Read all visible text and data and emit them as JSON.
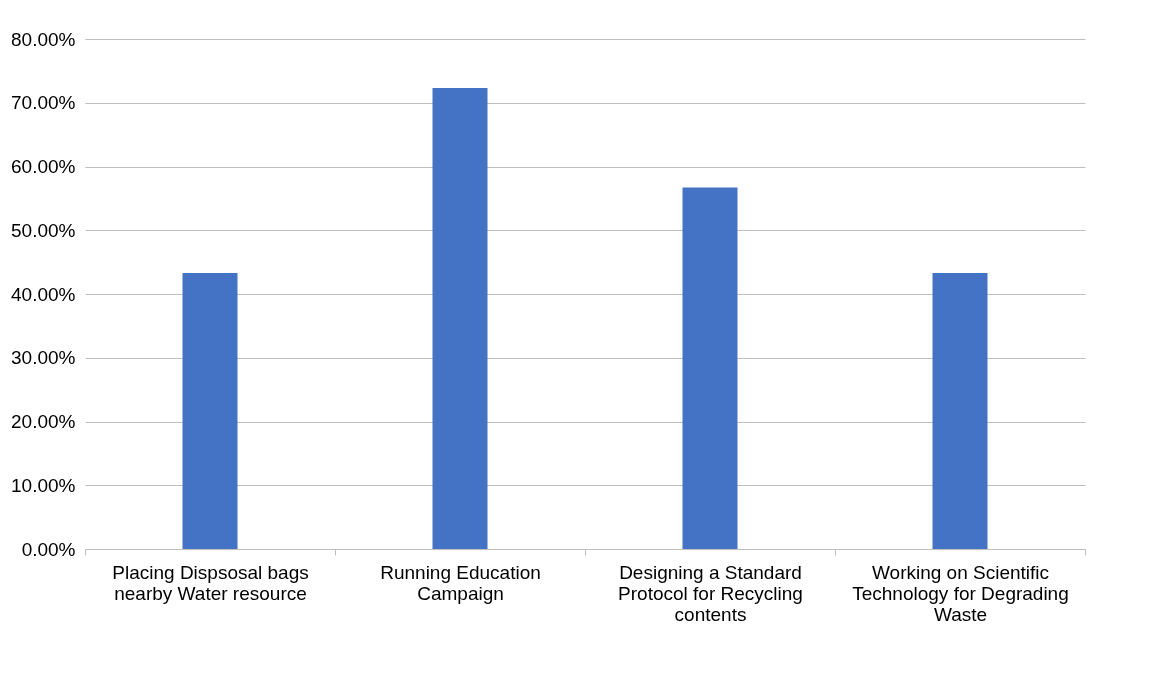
{
  "chart_data": {
    "type": "bar",
    "categories": [
      "Placing Dispsosal bags nearby Water resource",
      "Running Education Campaign",
      "Designing a Standard Protocol for Recycling contents",
      "Working on Scientific Technology for Degrading Waste"
    ],
    "values": [
      43.3,
      72.3,
      56.7,
      43.3
    ],
    "color": "#4472c4",
    "ylim": [
      0,
      80
    ],
    "yticks": [
      {
        "value": 0,
        "label": "0.00%"
      },
      {
        "value": 10,
        "label": "10.00%"
      },
      {
        "value": 20,
        "label": "20.00%"
      },
      {
        "value": 30,
        "label": "30.00%"
      },
      {
        "value": 40,
        "label": "40.00%"
      },
      {
        "value": 50,
        "label": "50.00%"
      },
      {
        "value": 60,
        "label": "60.00%"
      },
      {
        "value": 70,
        "label": "70.00%"
      },
      {
        "value": 80,
        "label": "80.00%"
      }
    ],
    "grid": "y"
  }
}
